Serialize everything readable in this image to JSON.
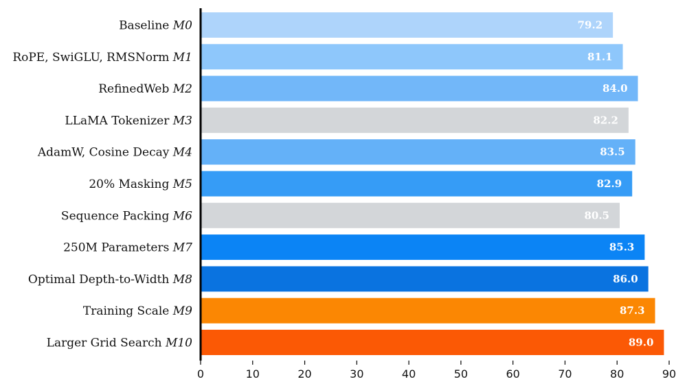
{
  "chart_data": {
    "type": "bar",
    "orientation": "horizontal",
    "categories": [
      {
        "label": "Baseline",
        "model": "M0"
      },
      {
        "label": "RoPE, SwiGLU, RMSNorm",
        "model": "M1"
      },
      {
        "label": "RefinedWeb",
        "model": "M2"
      },
      {
        "label": "LLaMA Tokenizer",
        "model": "M3"
      },
      {
        "label": "AdamW, Cosine Decay",
        "model": "M4"
      },
      {
        "label": "20% Masking",
        "model": "M5"
      },
      {
        "label": "Sequence Packing",
        "model": "M6"
      },
      {
        "label": "250M Parameters",
        "model": "M7"
      },
      {
        "label": "Optimal Depth-to-Width",
        "model": "M8"
      },
      {
        "label": "Training Scale",
        "model": "M9"
      },
      {
        "label": "Larger Grid Search",
        "model": "M10"
      }
    ],
    "values": [
      79.2,
      81.1,
      84.0,
      82.2,
      83.5,
      82.9,
      80.5,
      85.3,
      86.0,
      87.3,
      89.0
    ],
    "value_labels": [
      "79.2",
      "81.1",
      "84.0",
      "82.2",
      "83.5",
      "82.9",
      "80.5",
      "85.3",
      "86.0",
      "87.3",
      "89.0"
    ],
    "colors": [
      "#aed4fb",
      "#8ec7fb",
      "#72b7f9",
      "#d3d6d9",
      "#64b1f8",
      "#369cf6",
      "#d3d6d9",
      "#0b84f5",
      "#0a73e0",
      "#fb8703",
      "#fb5905"
    ],
    "xlim": [
      0,
      90
    ],
    "xticks": [
      "0",
      "10",
      "20",
      "30",
      "40",
      "50",
      "60",
      "70",
      "80",
      "90"
    ],
    "title": "",
    "xlabel": "",
    "ylabel": "",
    "grid": false,
    "legend": "none"
  }
}
